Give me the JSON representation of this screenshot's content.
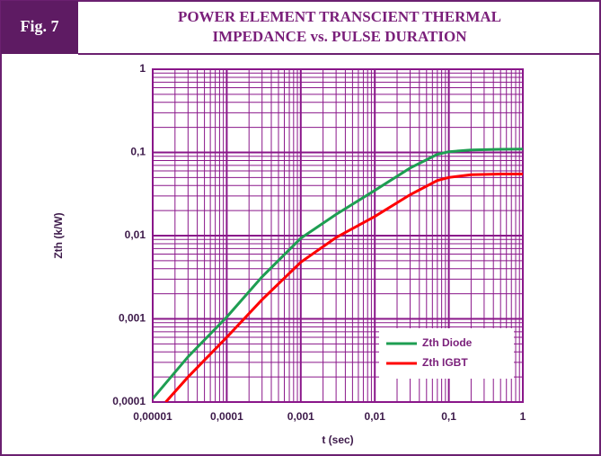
{
  "figure_label": "Fig. 7",
  "chart_data": {
    "type": "line",
    "title": [
      "POWER ELEMENT TRANSCIENT THERMAL",
      "IMPEDANCE vs. PULSE DURATION"
    ],
    "x_label": "t (sec)",
    "y_label": "Zth (k/W)",
    "log_x": true,
    "log_y": true,
    "grid": true,
    "minor_grid": true,
    "legend": "lower right",
    "xlim": [
      1e-05,
      1
    ],
    "ylim": [
      0.0001,
      1
    ],
    "xticks": [
      {
        "value": 1e-05,
        "label": "0,00001"
      },
      {
        "value": 0.0001,
        "label": "0,0001"
      },
      {
        "value": 0.001,
        "label": "0,001"
      },
      {
        "value": 0.01,
        "label": "0,01"
      },
      {
        "value": 0.1,
        "label": "0,1"
      },
      1
    ],
    "yticks": [
      {
        "value": 0.0001,
        "label": "0,0001"
      },
      {
        "value": 0.001,
        "label": "0,001"
      },
      {
        "value": 0.01,
        "label": "0,01"
      },
      {
        "value": 0.1,
        "label": "0,1"
      },
      1
    ],
    "series": [
      {
        "name": "Zth Diode",
        "color": "#1e9e52",
        "x": [
          1e-05,
          3e-05,
          0.0001,
          0.0003,
          0.001,
          0.003,
          0.01,
          0.03,
          0.07,
          0.1,
          0.2,
          0.5,
          1
        ],
        "values": [
          0.00011,
          0.00035,
          0.00105,
          0.0032,
          0.0093,
          0.018,
          0.035,
          0.065,
          0.095,
          0.102,
          0.107,
          0.109,
          0.11
        ]
      },
      {
        "name": "Zth IGBT",
        "color": "#ff0000",
        "x": [
          1.5e-05,
          3e-05,
          0.0001,
          0.0003,
          0.001,
          0.003,
          0.01,
          0.03,
          0.07,
          0.1,
          0.2,
          0.5,
          1
        ],
        "values": [
          0.0001,
          0.0002,
          0.0006,
          0.0017,
          0.0048,
          0.0095,
          0.017,
          0.031,
          0.046,
          0.05,
          0.054,
          0.055,
          0.055
        ]
      }
    ]
  }
}
